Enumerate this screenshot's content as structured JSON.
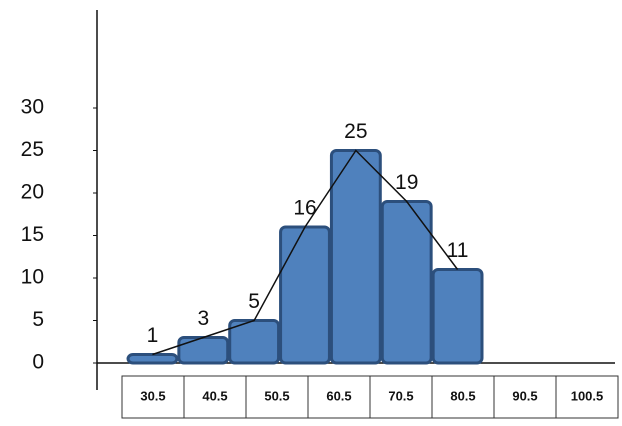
{
  "chart_data": {
    "type": "histogram",
    "bins": [
      30.5,
      40.5,
      50.5,
      60.5,
      70.5,
      80.5,
      90.5,
      100.5
    ],
    "values": [
      1,
      3,
      5,
      16,
      25,
      19,
      11
    ],
    "color": "#4f81bd",
    "ylim": [
      0,
      32
    ],
    "yticks": [
      0,
      5,
      10,
      15,
      20,
      25,
      30
    ]
  }
}
